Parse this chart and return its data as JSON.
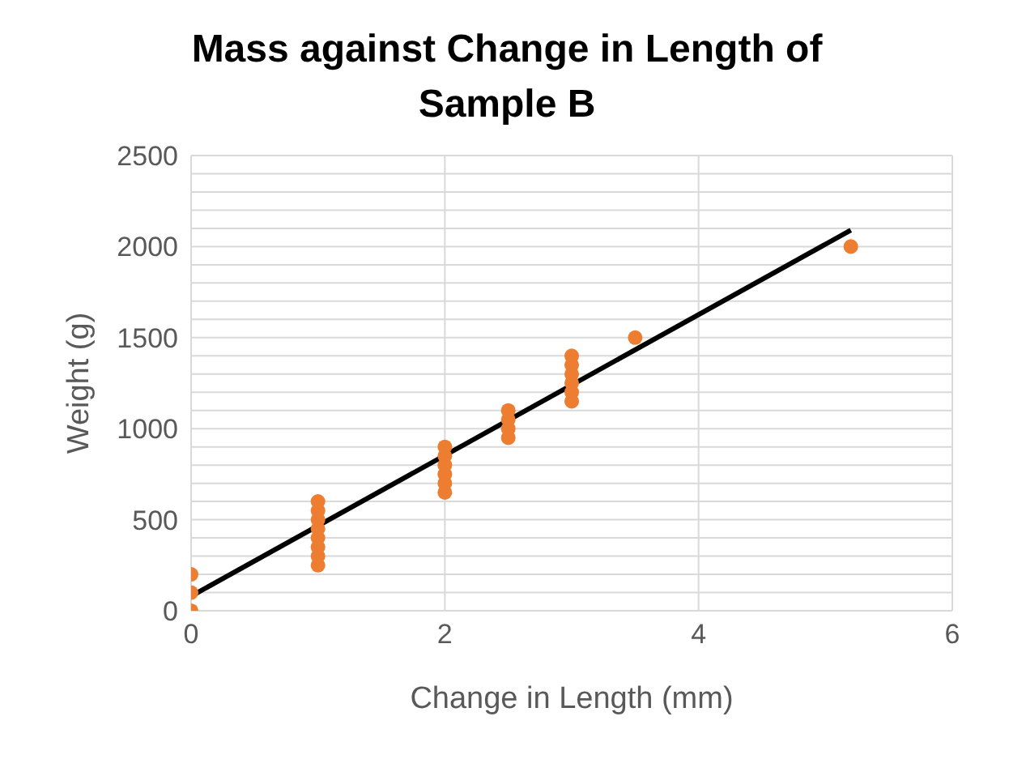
{
  "chart_data": {
    "type": "scatter",
    "title": "Mass against Change in Length of Sample B",
    "xlabel": "Change in Length (mm)",
    "ylabel": "Weight (g)",
    "xlim": [
      0,
      6
    ],
    "xticks": [
      0,
      2,
      4,
      6
    ],
    "ylim": [
      0,
      2500
    ],
    "yticks": [
      0,
      {
        "value": 100,
        "label": null
      },
      {
        "value": 200,
        "label": null
      },
      {
        "value": 300,
        "label": null
      },
      {
        "value": 400,
        "label": null
      },
      500,
      {
        "value": 600,
        "label": null
      },
      {
        "value": 700,
        "label": null
      },
      {
        "value": 800,
        "label": null
      },
      {
        "value": 900,
        "label": null
      },
      1000,
      {
        "value": 1100,
        "label": null
      },
      {
        "value": 1200,
        "label": null
      },
      {
        "value": 1300,
        "label": null
      },
      {
        "value": 1400,
        "label": null
      },
      1500,
      {
        "value": 1600,
        "label": null
      },
      {
        "value": 1700,
        "label": null
      },
      {
        "value": 1800,
        "label": null
      },
      {
        "value": 1900,
        "label": null
      },
      2000,
      {
        "value": 2100,
        "label": null
      },
      {
        "value": 2200,
        "label": null
      },
      {
        "value": 2300,
        "label": null
      },
      {
        "value": 2400,
        "label": null
      },
      2500
    ],
    "grid": true,
    "legend": false,
    "marker": "circle",
    "series": [
      {
        "color": "#ed7d31",
        "x": [
          0,
          0,
          0,
          1,
          1,
          1,
          1,
          1,
          1,
          1,
          1,
          2,
          2,
          2,
          2,
          2,
          2,
          2.5,
          2.5,
          2.5,
          2.5,
          3,
          3,
          3,
          3,
          3,
          3,
          3.5,
          5.2
        ],
        "values": [
          0,
          100,
          200,
          250,
          300,
          350,
          400,
          450,
          500,
          550,
          600,
          650,
          700,
          750,
          800,
          850,
          900,
          950,
          1000,
          1050,
          1100,
          1150,
          1200,
          1250,
          1300,
          1350,
          1400,
          1500,
          2000
        ]
      },
      {
        "type": "line",
        "color": "#000000",
        "x": [
          0,
          5.2
        ],
        "values": [
          80,
          2090
        ],
        "marker": "none",
        "line_style": "solid"
      }
    ]
  }
}
